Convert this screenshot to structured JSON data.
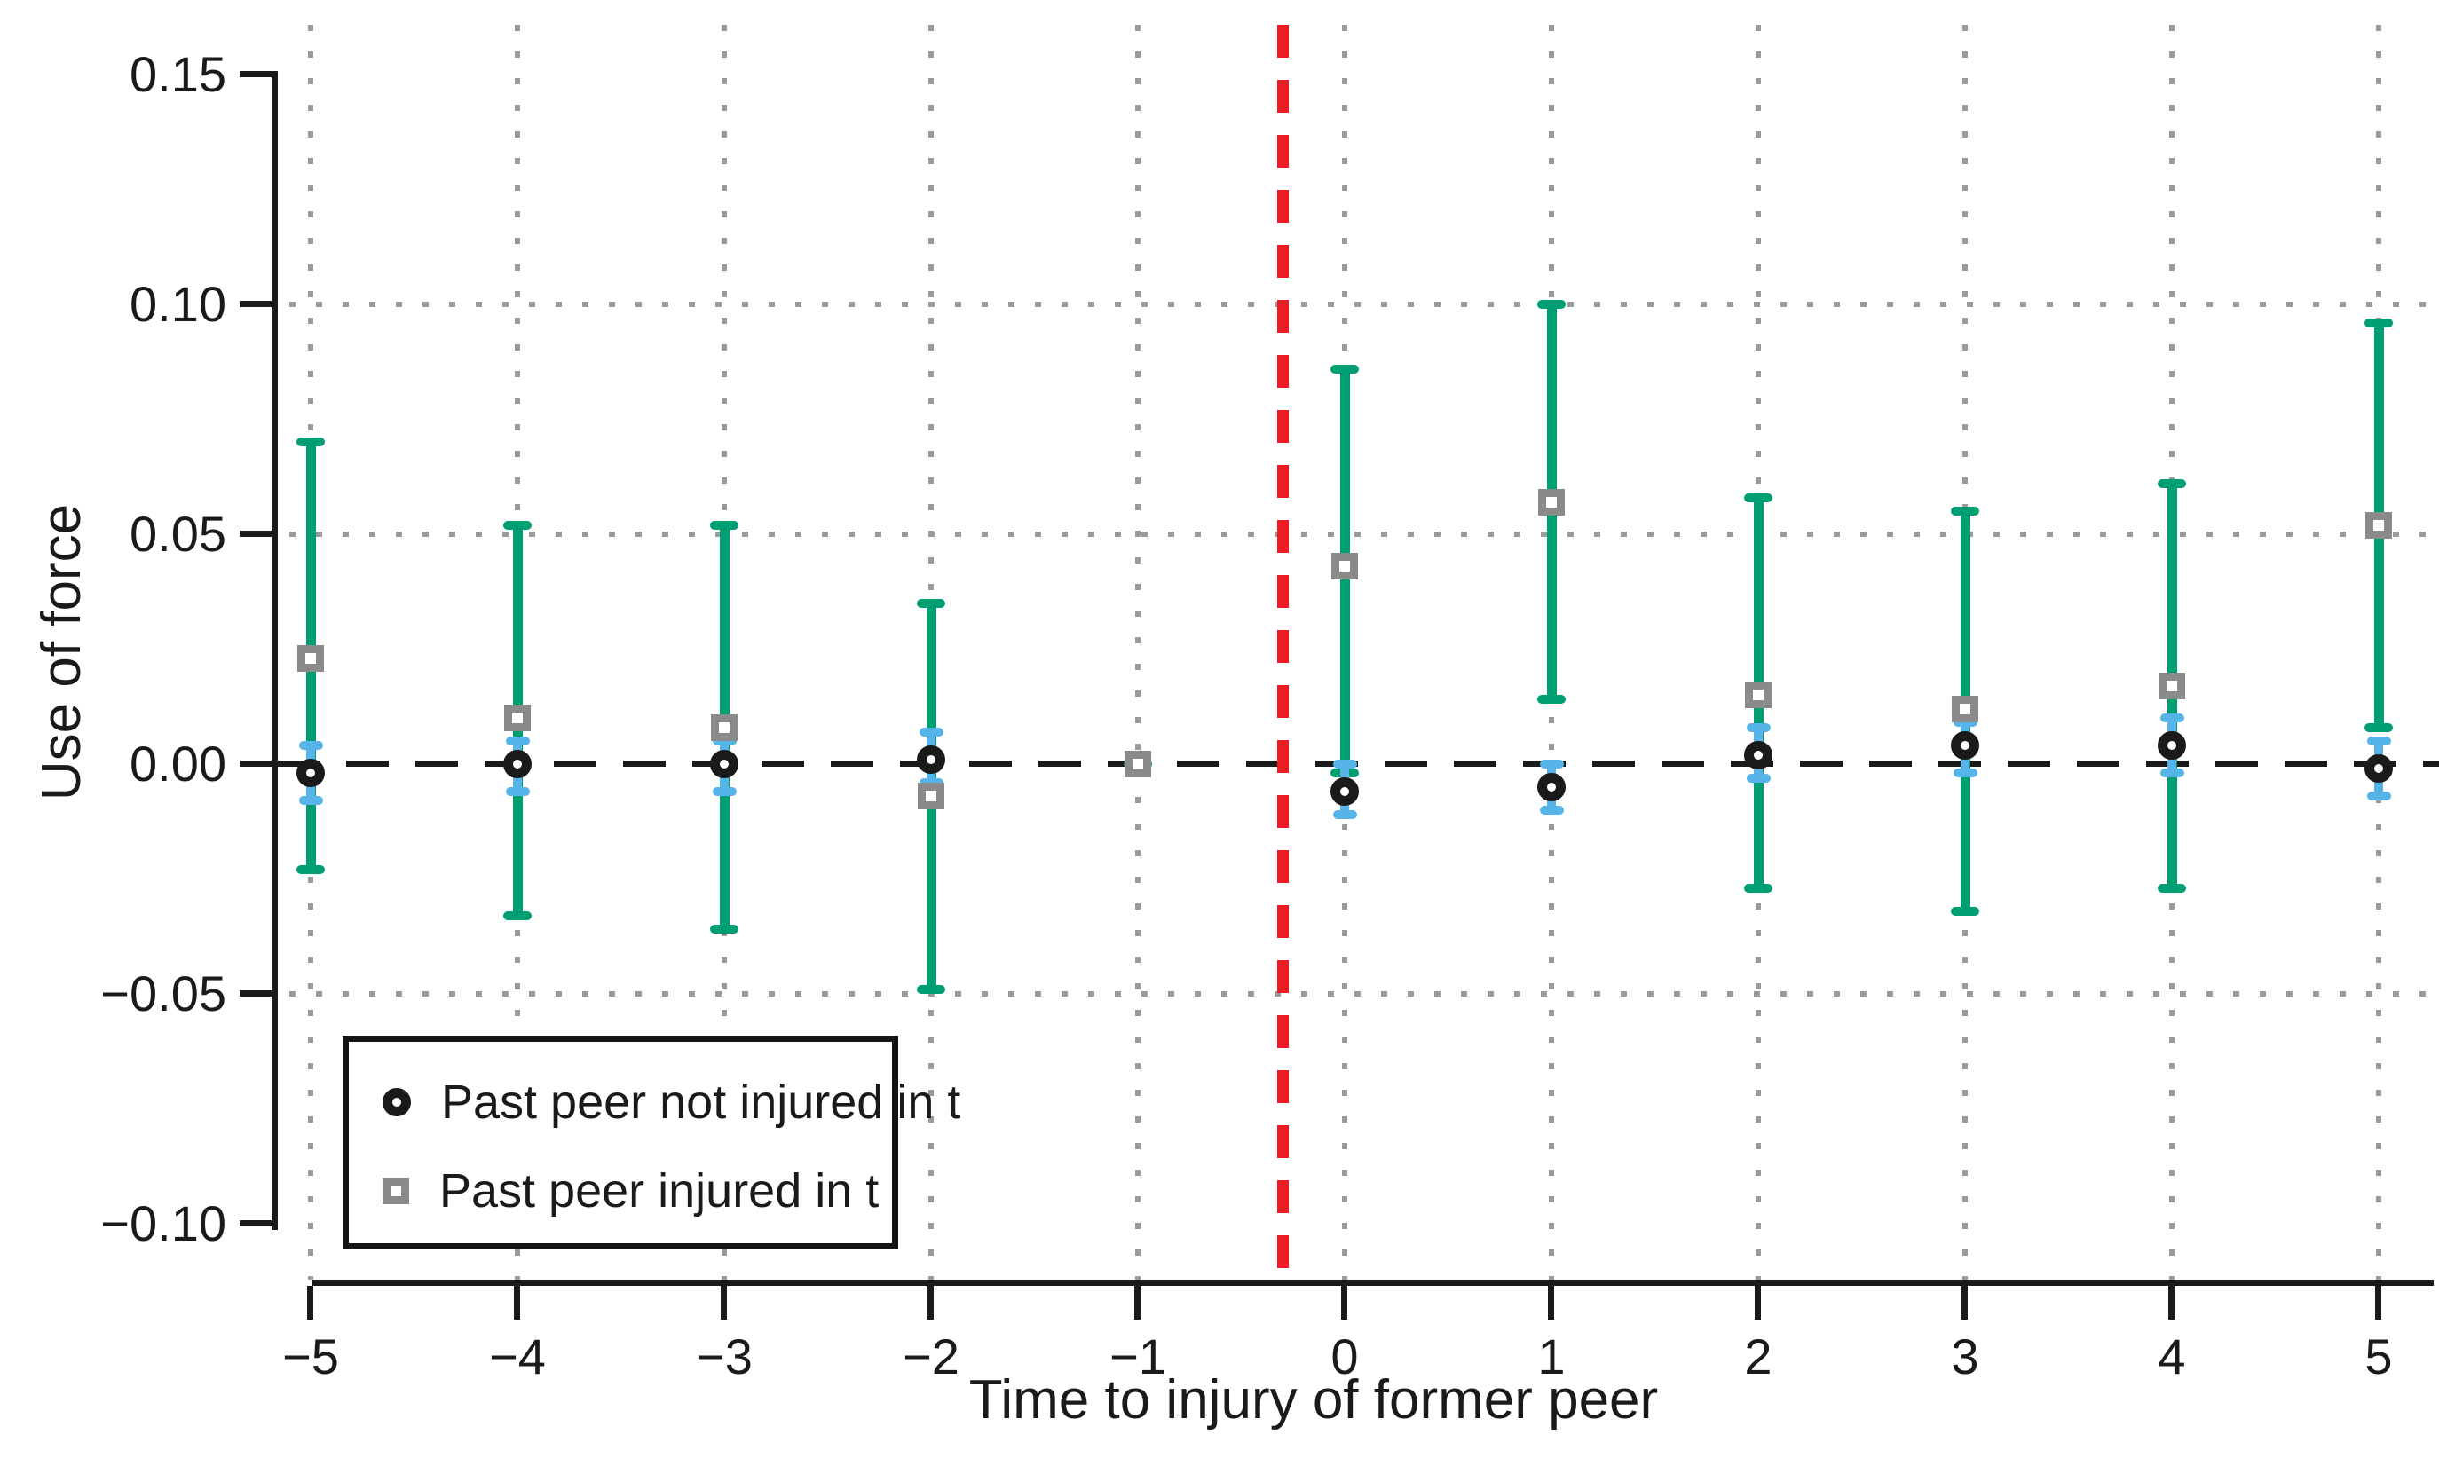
{
  "figure": {
    "background": "#FFFFFF"
  },
  "colors": {
    "axis": "#1a1a1a",
    "grid": "#9a9a9a",
    "zero_line": "#1a1a1a",
    "event_line": "#ED1C24",
    "injured_ci": "#009E73",
    "not_injured_ci": "#56B4E9",
    "injured_marker": "#8A8A8A",
    "not_injured_marker": "#1A1A1A"
  },
  "legend": {
    "items": [
      {
        "label": "Past peer not injured in t",
        "marker": "circle",
        "marker_color": "#1A1A1A"
      },
      {
        "label": "Past peer injured in t",
        "marker": "square",
        "marker_color": "#8A8A8A"
      }
    ]
  },
  "chart_data": {
    "type": "scatter",
    "subtype": "event-study with confidence intervals",
    "title": "",
    "xlabel": "Time to injury of former peer",
    "ylabel": "Use of force",
    "xlim": [
      -5.7,
      5.3
    ],
    "ylim": [
      -0.113,
      0.163
    ],
    "xticks": [
      -5,
      -4,
      -3,
      -2,
      -1,
      0,
      1,
      2,
      3,
      4,
      5
    ],
    "xtick_labels": [
      "−5",
      "−4",
      "−3",
      "−2",
      "−1",
      "0",
      "1",
      "2",
      "3",
      "4",
      "5"
    ],
    "yticks": [
      0.15,
      0.1,
      0.05,
      0.0,
      -0.05,
      -0.1
    ],
    "ytick_labels": [
      "0.15",
      "0.10",
      "0.05",
      "0.00",
      "−0.05",
      "−0.10"
    ],
    "grid_y": [
      0.1,
      0.05,
      -0.05
    ],
    "grid_on": true,
    "zero_line_y": 0,
    "event_line_x": -0.3,
    "legend_position": "bottom-left",
    "series": [
      {
        "name": "Past peer injured in t",
        "marker": "square",
        "marker_color": "#8A8A8A",
        "ci_color": "#009E73",
        "points": [
          {
            "x": -5,
            "y": 0.023,
            "lo": -0.023,
            "hi": 0.07
          },
          {
            "x": -4,
            "y": 0.01,
            "lo": -0.033,
            "hi": 0.052
          },
          {
            "x": -3,
            "y": 0.008,
            "lo": -0.036,
            "hi": 0.052
          },
          {
            "x": -2,
            "y": -0.007,
            "lo": -0.049,
            "hi": 0.035
          },
          {
            "x": -1,
            "y": 0.0,
            "lo": 0.0,
            "hi": 0.0
          },
          {
            "x": 0,
            "y": 0.043,
            "lo": -0.002,
            "hi": 0.086
          },
          {
            "x": 1,
            "y": 0.057,
            "lo": 0.014,
            "hi": 0.1
          },
          {
            "x": 2,
            "y": 0.015,
            "lo": -0.027,
            "hi": 0.058
          },
          {
            "x": 3,
            "y": 0.012,
            "lo": -0.032,
            "hi": 0.055
          },
          {
            "x": 4,
            "y": 0.017,
            "lo": -0.027,
            "hi": 0.061
          },
          {
            "x": 5,
            "y": 0.052,
            "lo": 0.008,
            "hi": 0.096
          }
        ]
      },
      {
        "name": "Past peer not injured in t",
        "marker": "circle",
        "marker_color": "#1A1A1A",
        "ci_color": "#56B4E9",
        "points": [
          {
            "x": -5,
            "y": -0.002,
            "lo": -0.008,
            "hi": 0.004
          },
          {
            "x": -4,
            "y": 0.0,
            "lo": -0.006,
            "hi": 0.005
          },
          {
            "x": -3,
            "y": 0.0,
            "lo": -0.006,
            "hi": 0.005
          },
          {
            "x": -2,
            "y": 0.001,
            "lo": -0.004,
            "hi": 0.007
          },
          {
            "x": -1,
            "y": null,
            "lo": null,
            "hi": null
          },
          {
            "x": 0,
            "y": -0.006,
            "lo": -0.011,
            "hi": 0.0
          },
          {
            "x": 1,
            "y": -0.005,
            "lo": -0.01,
            "hi": 0.0
          },
          {
            "x": 2,
            "y": 0.002,
            "lo": -0.003,
            "hi": 0.008
          },
          {
            "x": 3,
            "y": 0.004,
            "lo": -0.002,
            "hi": 0.009
          },
          {
            "x": 4,
            "y": 0.004,
            "lo": -0.002,
            "hi": 0.01
          },
          {
            "x": 5,
            "y": -0.001,
            "lo": -0.007,
            "hi": 0.005
          }
        ]
      }
    ]
  }
}
